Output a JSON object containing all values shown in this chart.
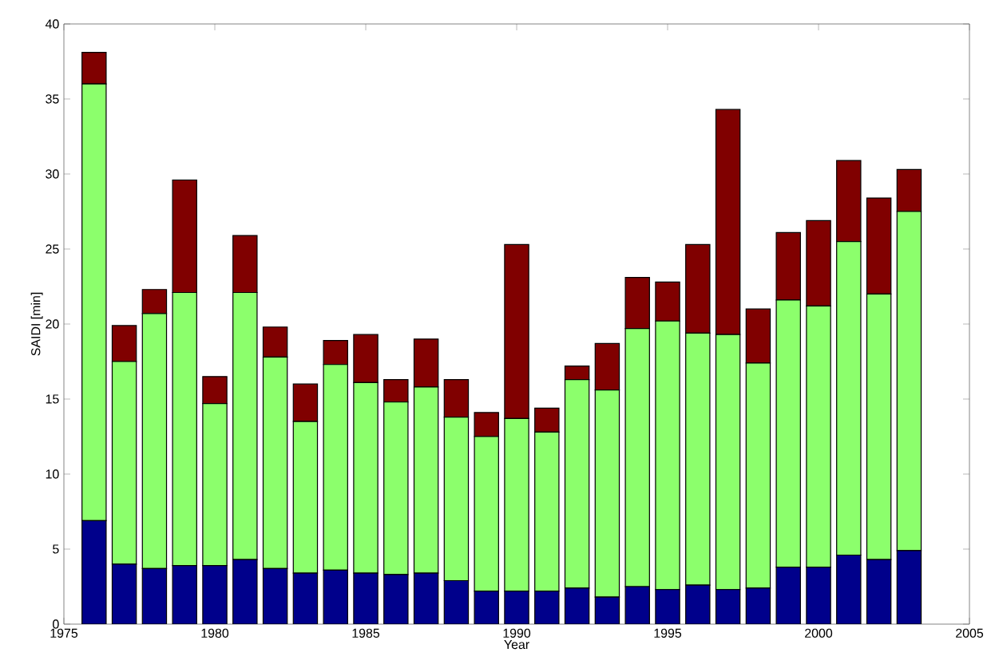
{
  "chart_data": {
    "type": "bar",
    "stacked": true,
    "xlabel": "Year",
    "ylabel": "SAIDI [min]",
    "x": [
      1976,
      1977,
      1978,
      1979,
      1980,
      1981,
      1982,
      1983,
      1984,
      1985,
      1986,
      1987,
      1988,
      1989,
      1990,
      1991,
      1992,
      1993,
      1994,
      1995,
      1996,
      1997,
      1998,
      1999,
      2000,
      2001,
      2002,
      2003
    ],
    "series": [
      {
        "color": "#00008b",
        "values": [
          6.9,
          4.0,
          3.7,
          3.9,
          3.9,
          4.3,
          3.7,
          3.4,
          3.6,
          3.4,
          3.3,
          3.4,
          2.9,
          2.2,
          2.2,
          2.2,
          2.4,
          1.8,
          2.5,
          2.3,
          2.6,
          2.3,
          2.4,
          3.8,
          3.8,
          4.6,
          4.3,
          4.9
        ]
      },
      {
        "color": "#8cff6c",
        "values": [
          29.1,
          13.5,
          17.0,
          18.2,
          10.8,
          17.8,
          14.1,
          10.1,
          13.7,
          12.7,
          11.5,
          12.4,
          10.9,
          10.3,
          11.5,
          10.6,
          13.9,
          13.8,
          17.2,
          17.9,
          16.8,
          17.0,
          15.0,
          17.8,
          17.4,
          20.9,
          17.7,
          22.6
        ]
      },
      {
        "color": "#800000",
        "values": [
          2.1,
          2.4,
          1.6,
          7.5,
          1.8,
          3.8,
          2.0,
          2.5,
          1.6,
          3.2,
          1.5,
          3.2,
          2.5,
          1.6,
          11.6,
          1.6,
          0.9,
          3.1,
          3.4,
          2.6,
          5.9,
          15.0,
          3.6,
          4.5,
          5.7,
          5.4,
          6.4,
          2.8
        ]
      }
    ],
    "xlim": [
      1975,
      2005
    ],
    "xticks": [
      1975,
      1980,
      1985,
      1990,
      1995,
      2000,
      2005
    ],
    "ylim": [
      0,
      40
    ],
    "yticks": [
      0,
      5,
      10,
      15,
      20,
      25,
      30,
      35,
      40
    ]
  }
}
